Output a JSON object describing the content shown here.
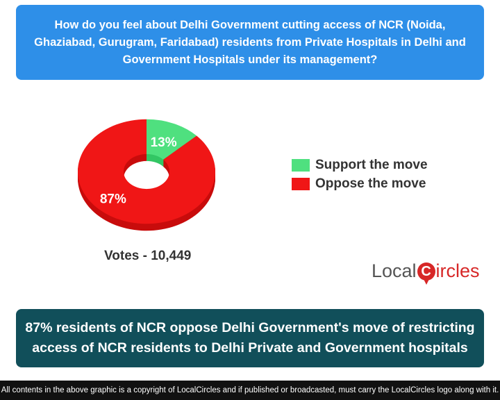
{
  "question": "How do you feel about Delhi Government cutting access of NCR (Noida, Ghaziabad, Gurugram, Faridabad) residents from Private Hospitals in Delhi and Government Hospitals under its management?",
  "chart_data": {
    "type": "pie",
    "style": "donut-3d",
    "categories": [
      "Support the move",
      "Oppose the move"
    ],
    "values": [
      13,
      87
    ],
    "labels": [
      "13%",
      "87%"
    ],
    "colors": [
      "#4fe07f",
      "#f01616"
    ],
    "legend_position": "right"
  },
  "votes": "Votes - 10,449",
  "logo": {
    "part1": "Local",
    "c": "C",
    "part2": "ircles"
  },
  "headline": "87% residents of NCR oppose Delhi Government's move of restricting access of NCR residents to Delhi Private and Government hospitals",
  "footer": "All contents in the above graphic is a copyright of LocalCircles and if published or broadcasted, must carry the LocalCircles logo along with it."
}
